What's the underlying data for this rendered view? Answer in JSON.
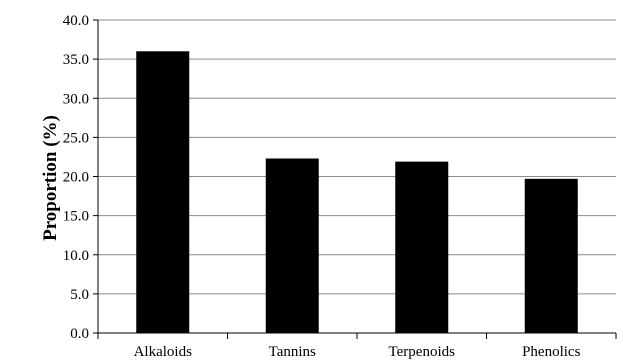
{
  "chart_data": {
    "type": "bar",
    "categories": [
      "Alkaloids",
      "Tannins",
      "Terpenoids",
      "Phenolics"
    ],
    "values": [
      36.0,
      22.3,
      21.9,
      19.7
    ],
    "title": "",
    "xlabel": "",
    "ylabel": "Proportion (%)",
    "ylim": [
      0,
      40
    ],
    "yticks": [
      "0.0",
      "5.0",
      "10.0",
      "15.0",
      "20.0",
      "25.0",
      "30.0",
      "35.0",
      "40.0"
    ],
    "grid": true,
    "legend": "none",
    "colors": {
      "bar": "#000000",
      "grid": "#8c8c8c",
      "axis": "#000000"
    }
  }
}
